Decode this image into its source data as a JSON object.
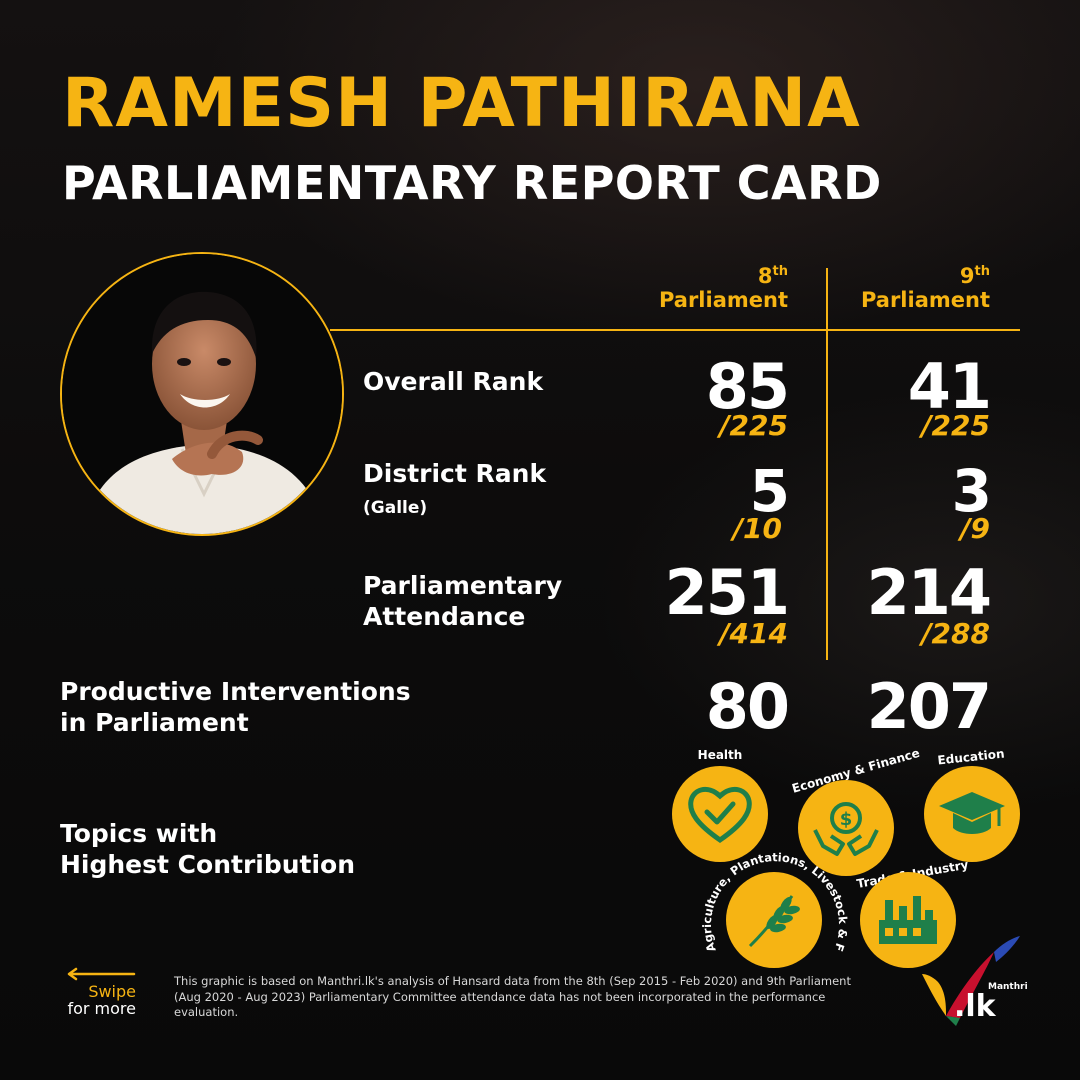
{
  "header": {
    "name": "RAMESH PATHIRANA",
    "subtitle": "PARLIAMENTARY REPORT CARD"
  },
  "columns": [
    {
      "num": "8",
      "sup": "th",
      "label": "Parliament"
    },
    {
      "num": "9",
      "sup": "th",
      "label": "Parliament"
    }
  ],
  "metrics": {
    "overall_rank": {
      "label": "Overall Rank",
      "p8": "85",
      "p8_total": "/225",
      "p9": "41",
      "p9_total": "/225"
    },
    "district_rank": {
      "label": "District Rank",
      "sublabel": "(Galle)",
      "p8": "5",
      "p8_total": "/10",
      "p9": "3",
      "p9_total": "/9"
    },
    "attendance": {
      "label_line1": "Parliamentary",
      "label_line2": "Attendance",
      "p8": "251",
      "p8_total": "/414",
      "p9": "214",
      "p9_total": "/288"
    },
    "interventions": {
      "label_line1": "Productive Interventions",
      "label_line2": "in Parliament",
      "p8": "80",
      "p9": "207"
    }
  },
  "topics": {
    "heading_line1": "Topics with",
    "heading_line2": "Highest Contribution",
    "items": [
      {
        "label": "Health",
        "icon": "heart-check-icon"
      },
      {
        "label": "Economy & Finance",
        "icon": "money-hands-icon"
      },
      {
        "label": "Education",
        "icon": "graduation-cap-icon"
      },
      {
        "label": "Agriculture, Plantations, Livestock & Fisheries",
        "icon": "wheat-icon"
      },
      {
        "label": "Trade & Industry",
        "icon": "factory-icon"
      }
    ]
  },
  "footer": {
    "swipe_line1": "Swipe",
    "swipe_line2": "for more",
    "note": "This graphic is based on Manthri.lk's analysis of Hansard data from the 8th (Sep 2015 - Feb 2020) and 9th Parliament (Aug 2020 - Aug 2023) Parliamentary Committee attendance data has not been incorporated in the performance evaluation.",
    "logo_small": "Manthri",
    "logo_big": ".lk"
  },
  "colors": {
    "accent": "#f6b413",
    "background": "#0b0b0b",
    "text": "#ffffff"
  }
}
